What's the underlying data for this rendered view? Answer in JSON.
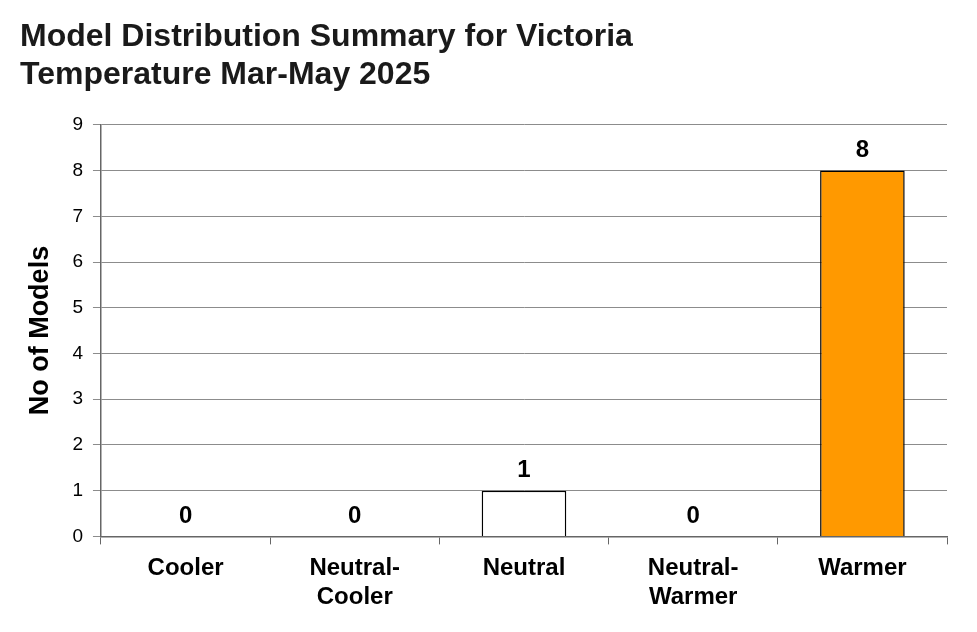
{
  "chart_data": {
    "type": "bar",
    "title": "Model Distribution Summary for Victoria Temperature Mar-May 2025",
    "y_label": "No of Models",
    "categories": [
      "Cooler",
      "Neutral-Cooler",
      "Neutral",
      "Neutral-Warmer",
      "Warmer"
    ],
    "values": [
      0,
      0,
      1,
      0,
      8
    ],
    "colors": [
      "#ffffff",
      "#ffffff",
      "#ffffff",
      "#ffffff",
      "#ff9900"
    ],
    "ylim": [
      0,
      9
    ],
    "yticks": [
      0,
      1,
      2,
      3,
      4,
      5,
      6,
      7,
      8,
      9
    ],
    "grid": true,
    "data_labels": true
  }
}
